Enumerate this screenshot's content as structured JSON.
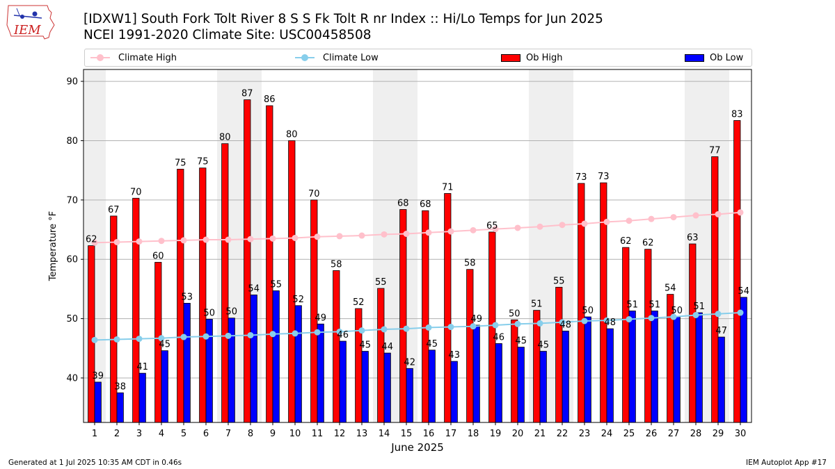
{
  "logo": {
    "text": "IEM"
  },
  "title": "[IDXW1] South Fork Tolt River 8 S S Fk Tolt R nr Index :: Hi/Lo Temps for Jun 2025",
  "subtitle": "NCEI 1991-2020 Climate Site: USC00458508",
  "legend": [
    {
      "name": "Climate High",
      "color": "#ffc0cb",
      "kind": "line"
    },
    {
      "name": "Climate Low",
      "color": "#87ceeb",
      "kind": "line"
    },
    {
      "name": "Ob High",
      "color": "#ff0000",
      "kind": "bar"
    },
    {
      "name": "Ob Low",
      "color": "#0000ff",
      "kind": "bar"
    }
  ],
  "footer": {
    "left": "Generated at 1 Jul 2025 10:35 AM CDT in 0.46s",
    "right": "IEM Autoplot App #17"
  },
  "chart_data": {
    "type": "bar",
    "xlabel": "June 2025",
    "ylabel": "Temperature °F",
    "ylim": [
      32.5,
      92
    ],
    "yticks": [
      40,
      50,
      60,
      70,
      80,
      90
    ],
    "grid": true,
    "legend_position": "top",
    "categories": [
      "1",
      "2",
      "3",
      "4",
      "5",
      "6",
      "7",
      "8",
      "9",
      "10",
      "11",
      "12",
      "13",
      "14",
      "15",
      "16",
      "17",
      "18",
      "19",
      "20",
      "21",
      "22",
      "23",
      "24",
      "25",
      "26",
      "27",
      "28",
      "29",
      "30"
    ],
    "weekend_days": [
      1,
      7,
      8,
      14,
      15,
      21,
      22,
      28,
      29
    ],
    "series": [
      {
        "name": "Ob High",
        "color": "#ff0000",
        "values": [
          62.3,
          67.3,
          70.3,
          59.5,
          75.2,
          75.4,
          79.5,
          86.9,
          85.9,
          80.0,
          70.0,
          58.1,
          51.7,
          55.1,
          68.4,
          68.2,
          71.1,
          58.3,
          64.6,
          49.8,
          51.4,
          55.3,
          72.8,
          72.9,
          62.0,
          61.7,
          54.1,
          62.6,
          77.3,
          83.4
        ],
        "labels": [
          "62",
          "67",
          "70",
          "60",
          "75",
          "75",
          "80",
          "87",
          "86",
          "80",
          "70",
          "58",
          "52",
          "55",
          "68",
          "68",
          "71",
          "58",
          "65",
          "50",
          "51",
          "55",
          "73",
          "73",
          "62",
          "62",
          "54",
          "63",
          "77",
          "83"
        ]
      },
      {
        "name": "Ob Low",
        "color": "#0000ff",
        "values": [
          39.3,
          37.5,
          40.8,
          44.6,
          52.6,
          49.9,
          50.1,
          54.0,
          54.7,
          52.2,
          49.1,
          46.2,
          44.5,
          44.2,
          41.6,
          44.7,
          42.8,
          48.9,
          45.8,
          45.2,
          44.5,
          47.9,
          50.3,
          48.3,
          51.3,
          51.3,
          50.3,
          51.0,
          46.9,
          53.6
        ],
        "labels": [
          "39",
          "38",
          "41",
          "45",
          "53",
          "50",
          "50",
          "54",
          "55",
          "52",
          "49",
          "46",
          "45",
          "44",
          "42",
          "45",
          "43",
          "49",
          "46",
          "45",
          "45",
          "48",
          "50",
          "48",
          "51",
          "51",
          "50",
          "51",
          "47",
          "54"
        ]
      },
      {
        "name": "Climate High",
        "color": "#ffc0cb",
        "values": [
          62.8,
          62.9,
          63.0,
          63.1,
          63.2,
          63.3,
          63.3,
          63.4,
          63.5,
          63.6,
          63.8,
          63.9,
          64.0,
          64.2,
          64.3,
          64.5,
          64.7,
          64.9,
          65.1,
          65.3,
          65.5,
          65.8,
          66.0,
          66.3,
          66.5,
          66.8,
          67.1,
          67.4,
          67.6,
          67.9
        ]
      },
      {
        "name": "Climate Low",
        "color": "#87ceeb",
        "values": [
          46.4,
          46.5,
          46.6,
          46.7,
          46.9,
          47.0,
          47.1,
          47.2,
          47.4,
          47.5,
          47.7,
          47.8,
          48.0,
          48.2,
          48.3,
          48.5,
          48.6,
          48.7,
          48.9,
          49.1,
          49.2,
          49.4,
          49.6,
          49.7,
          49.9,
          50.1,
          50.3,
          50.6,
          50.8,
          51.0
        ]
      }
    ]
  }
}
